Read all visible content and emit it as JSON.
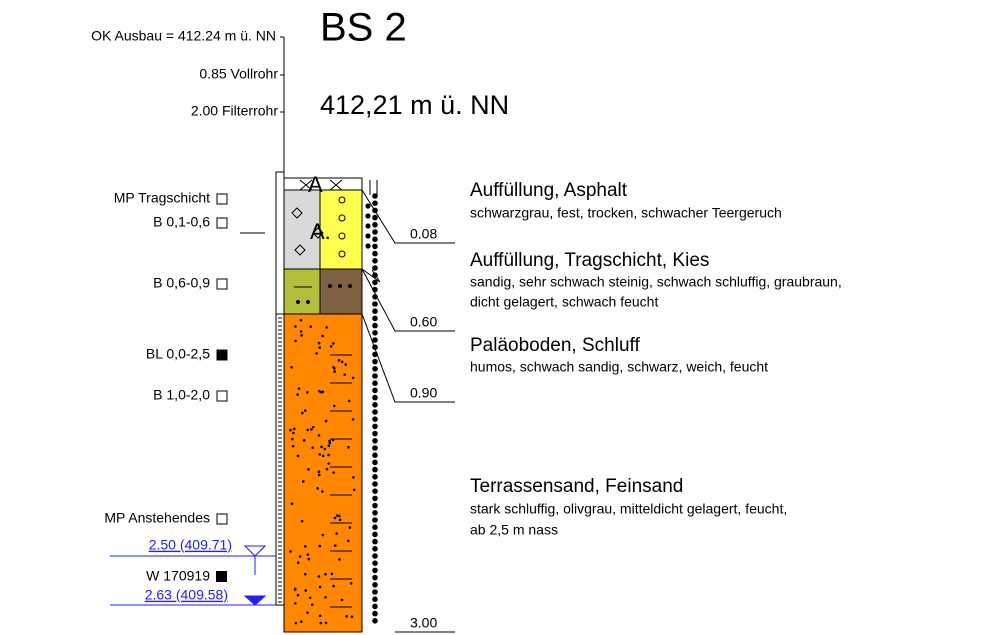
{
  "header": {
    "title": "BS 2",
    "elevation": "412,21 m ü. NN"
  },
  "well": {
    "top": "OK Ausbau = 412.24 m ü. NN",
    "sections": [
      "0.85 Vollrohr",
      "2.00 Filterrohr"
    ]
  },
  "samples": [
    {
      "label": "MP Tragschicht",
      "filled": false
    },
    {
      "label": "B 0,1-0,6",
      "filled": false
    },
    {
      "label": "B 0,6-0,9",
      "filled": false
    },
    {
      "label": "BL 0,0-2,5",
      "filled": true
    },
    {
      "label": "B 1,0-2,0",
      "filled": false
    },
    {
      "label": "MP Anstehendes",
      "filled": false
    }
  ],
  "water": {
    "level_1": "2.50 (409.71)",
    "date": "W 170919",
    "level_2": "2.63 (409.58)"
  },
  "symbols": [
    "A",
    "A."
  ],
  "depths": [
    "0.08",
    "0.60",
    "0.90",
    "3.00"
  ],
  "layers": [
    {
      "title": "Auffüllung, Asphalt",
      "description": [
        "schwarzgrau, fest, trocken, schwacher Teergeruch"
      ]
    },
    {
      "title": "Auffüllung, Tragschicht, Kies",
      "description": [
        "sandig, sehr schwach steinig, schwach schluffig, graubraun,",
        "dicht gelagert, schwach feucht"
      ]
    },
    {
      "title": "Paläoboden, Schluff",
      "description": [
        "humos, schwach sandig, schwarz, weich, feucht"
      ]
    },
    {
      "title": "Terrassensand, Feinsand",
      "description": [
        "stark schluffig, olivgrau, mitteldicht gelagert, feucht,",
        "ab 2,5 m nass"
      ]
    }
  ]
}
